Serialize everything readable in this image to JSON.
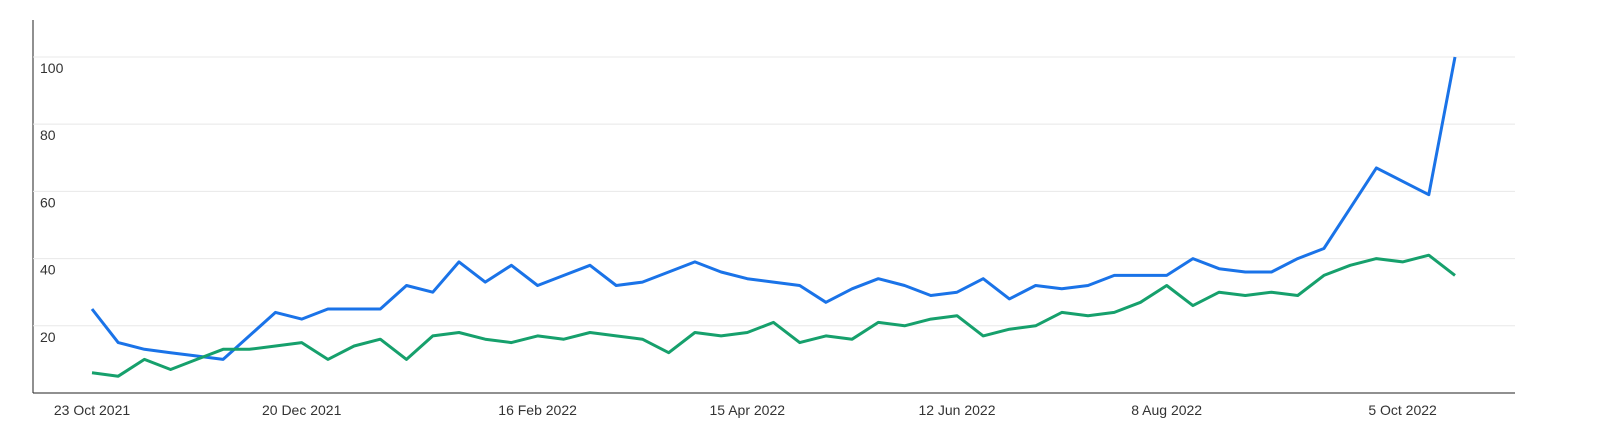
{
  "chart_data": {
    "type": "line",
    "categories": [
      "23 Oct 2021",
      null,
      null,
      null,
      null,
      null,
      null,
      null,
      "20 Dec 2021",
      null,
      null,
      null,
      null,
      null,
      null,
      null,
      null,
      "16 Feb 2022",
      null,
      null,
      null,
      null,
      null,
      null,
      null,
      "15 Apr 2022",
      null,
      null,
      null,
      null,
      null,
      null,
      null,
      "12 Jun 2022",
      null,
      null,
      null,
      null,
      null,
      null,
      null,
      "8 Aug 2022",
      null,
      null,
      null,
      null,
      null,
      null,
      null,
      null,
      "5 Oct 2022",
      null,
      null
    ],
    "series": [
      {
        "color": "#1a73e8",
        "values": [
          25,
          15,
          13,
          12,
          11,
          10,
          17,
          24,
          22,
          25,
          25,
          25,
          32,
          30,
          39,
          33,
          38,
          32,
          35,
          38,
          32,
          33,
          36,
          39,
          36,
          34,
          33,
          32,
          27,
          31,
          34,
          32,
          29,
          30,
          34,
          28,
          32,
          31,
          32,
          35,
          35,
          35,
          40,
          37,
          36,
          36,
          40,
          43,
          55,
          67,
          63,
          59,
          100
        ]
      },
      {
        "color": "#16a06c",
        "values": [
          6,
          5,
          10,
          7,
          10,
          13,
          13,
          14,
          15,
          10,
          14,
          16,
          10,
          17,
          18,
          16,
          15,
          17,
          16,
          18,
          17,
          16,
          12,
          18,
          17,
          18,
          21,
          15,
          17,
          16,
          21,
          20,
          22,
          23,
          17,
          19,
          20,
          24,
          23,
          24,
          27,
          32,
          26,
          30,
          29,
          30,
          29,
          35,
          38,
          40,
          39,
          41,
          35
        ]
      }
    ],
    "ylim": [
      0,
      111
    ],
    "yticks": [
      20,
      40,
      60,
      80,
      100
    ],
    "grid": true
  }
}
